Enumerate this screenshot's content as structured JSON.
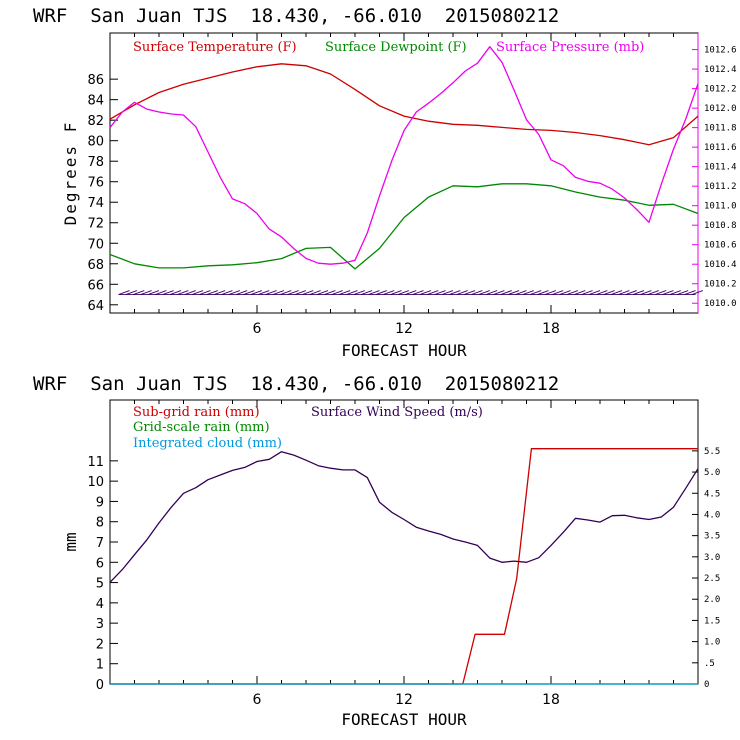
{
  "chart_data": [
    {
      "type": "line",
      "title": "WRF  San Juan TJS  18.430, -66.010  2015080212",
      "xlabel": "FORECAST HOUR",
      "ylabel": "Degrees F",
      "xlim": [
        0,
        24
      ],
      "ylim": [
        63.2,
        90.5
      ],
      "x_ticks": [
        6,
        12,
        18
      ],
      "y_ticks": [
        64,
        66,
        68,
        70,
        72,
        74,
        76,
        78,
        80,
        82,
        84,
        86
      ],
      "y2_label": "",
      "y2lim": [
        1009.9,
        1012.77
      ],
      "y2_ticks": [
        "1010.0",
        "1010.2",
        "1010.4",
        "1010.6",
        "1010.8",
        "1011.0",
        "1011.2",
        "1011.4",
        "1011.6",
        "1011.8",
        "1012.0",
        "1012.2",
        "1012.4",
        "1012.6"
      ],
      "legend": [
        "Surface Temperature (F)",
        "Surface Dewpoint (F)",
        "Surface Pressure (mb)"
      ],
      "colors": {
        "temperature": "#cc0000",
        "dewpoint": "#008800",
        "pressure": "#ee00ee",
        "wind_barbs": "#3d0066"
      },
      "series": [
        {
          "name": "Surface Temperature (F)",
          "axis": "left",
          "x": [
            0,
            1,
            2,
            3,
            4,
            5,
            6,
            7,
            8,
            9,
            10,
            11,
            12,
            13,
            14,
            15,
            16,
            17,
            18,
            19,
            20,
            21,
            22,
            23,
            24
          ],
          "values": [
            82.1,
            83.5,
            84.7,
            85.5,
            86.1,
            86.7,
            87.2,
            87.5,
            87.3,
            86.5,
            85,
            83.4,
            82.4,
            81.9,
            81.6,
            81.5,
            81.3,
            81.1,
            81,
            80.8,
            80.5,
            80.1,
            79.6,
            80.3,
            82.4
          ]
        },
        {
          "name": "Surface Dewpoint (F)",
          "axis": "left",
          "x": [
            0,
            1,
            2,
            3,
            4,
            5,
            6,
            7,
            8,
            9,
            10,
            11,
            12,
            13,
            14,
            15,
            16,
            17,
            18,
            19,
            20,
            21,
            22,
            23,
            24
          ],
          "values": [
            68.9,
            68,
            67.6,
            67.6,
            67.8,
            67.9,
            68.1,
            68.5,
            69.5,
            69.6,
            67.5,
            69.5,
            72.5,
            74.5,
            75.6,
            75.5,
            75.8,
            75.8,
            75.6,
            75,
            74.5,
            74.2,
            73.7,
            73.8,
            72.9
          ]
        },
        {
          "name": "Surface Pressure (mb)",
          "axis": "right",
          "x": [
            0,
            0.5,
            1,
            1.5,
            2,
            2.5,
            3,
            3.5,
            4,
            4.5,
            5,
            5.5,
            6,
            6.5,
            7,
            7.5,
            8,
            8.5,
            9,
            9.5,
            10,
            10.5,
            11,
            11.5,
            12,
            12.5,
            13,
            13.5,
            14,
            14.5,
            15,
            15.5,
            16,
            16.5,
            17,
            17.5,
            18,
            18.5,
            19,
            19.5,
            20,
            20.5,
            21,
            21.5,
            22,
            22.5,
            23,
            23.5,
            24
          ],
          "values": [
            1011.8,
            1011.96,
            1012.06,
            1011.99,
            1011.96,
            1011.94,
            1011.93,
            1011.81,
            1011.55,
            1011.29,
            1011.07,
            1011.02,
            1010.92,
            1010.76,
            1010.68,
            1010.56,
            1010.46,
            1010.41,
            1010.4,
            1010.41,
            1010.44,
            1010.72,
            1011.1,
            1011.46,
            1011.77,
            1011.96,
            1012.05,
            1012.15,
            1012.26,
            1012.38,
            1012.46,
            1012.63,
            1012.47,
            1012.18,
            1011.88,
            1011.73,
            1011.47,
            1011.41,
            1011.29,
            1011.25,
            1011.23,
            1011.17,
            1011.08,
            1010.96,
            1010.83,
            1011.22,
            1011.58,
            1011.89,
            1012.25
          ]
        }
      ],
      "wind_barbs": {
        "y": 65,
        "x_start": 0.35,
        "x_end": 23.9,
        "step": 0.3
      }
    },
    {
      "type": "line",
      "title": "WRF  San Juan TJS  18.430, -66.010  2015080212",
      "xlabel": "FORECAST HOUR",
      "ylabel": "mm",
      "xlim": [
        0,
        24
      ],
      "ylim": [
        0,
        14
      ],
      "x_ticks": [
        6,
        12,
        18
      ],
      "y_ticks": [
        0,
        1,
        2,
        3,
        4,
        5,
        6,
        7,
        8,
        9,
        10,
        11
      ],
      "y2_label": "",
      "y2lim": [
        0,
        6.7
      ],
      "y2_ticks": [
        "0",
        ".5",
        "1.0",
        "1.5",
        "2.0",
        "2.5",
        "3.0",
        "3.5",
        "4.0",
        "4.5",
        "5.0",
        "5.5"
      ],
      "legend": [
        "Sub-grid rain (mm)",
        "Grid-scale rain (mm)",
        "Integrated cloud (mm)",
        "Surface Wind Speed (m/s)"
      ],
      "colors": {
        "subgrid": "#cc0000",
        "gridscale": "#008800",
        "cloud": "#0099dd",
        "wind": "#330055"
      },
      "series": [
        {
          "name": "Sub-grid rain (mm)",
          "axis": "left",
          "x": [
            0,
            14.4,
            14.9,
            16.1,
            16.6,
            17.2,
            24
          ],
          "values": [
            0,
            0,
            2.45,
            2.45,
            5.2,
            11.6,
            11.6
          ]
        },
        {
          "name": "Grid-scale rain (mm)",
          "axis": "left",
          "x": [
            0,
            24
          ],
          "values": [
            0,
            0
          ]
        },
        {
          "name": "Integrated cloud (mm)",
          "axis": "left",
          "x": [
            0,
            24
          ],
          "values": [
            0,
            0
          ]
        },
        {
          "name": "Surface Wind Speed (m/s)",
          "axis": "right",
          "x": [
            0,
            0.5,
            1,
            1.5,
            2,
            2.5,
            3,
            3.5,
            4,
            4.5,
            5,
            5.5,
            6,
            6.5,
            7,
            7.5,
            8,
            8.5,
            9,
            9.5,
            10,
            10.5,
            11,
            11.5,
            12,
            12.5,
            13,
            13.5,
            14,
            14.5,
            15,
            15.5,
            16,
            16.5,
            17,
            17.5,
            18,
            18.5,
            19,
            19.5,
            20,
            20.5,
            21,
            21.5,
            22,
            22.5,
            23,
            23.5,
            24
          ],
          "values": [
            2.4,
            2.7,
            3.05,
            3.4,
            3.8,
            4.17,
            4.5,
            4.63,
            4.82,
            4.93,
            5.04,
            5.11,
            5.25,
            5.3,
            5.48,
            5.4,
            5.28,
            5.15,
            5.09,
            5.05,
            5.05,
            4.87,
            4.29,
            4.05,
            3.88,
            3.7,
            3.61,
            3.53,
            3.42,
            3.35,
            3.27,
            2.97,
            2.87,
            2.9,
            2.87,
            2.98,
            3.27,
            3.58,
            3.91,
            3.87,
            3.82,
            3.97,
            3.98,
            3.92,
            3.88,
            3.94,
            4.17,
            4.62,
            5.08
          ]
        }
      ]
    }
  ]
}
